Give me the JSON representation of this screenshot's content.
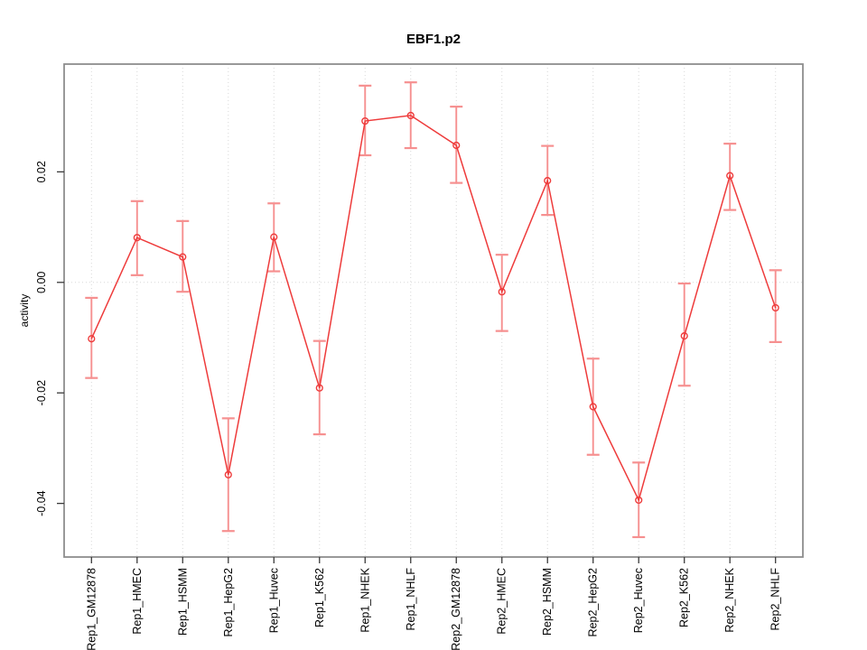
{
  "chart_data": {
    "type": "line",
    "title": "EBF1.p2",
    "xlabel": "",
    "ylabel": "activity",
    "categories": [
      "Rep1_GM12878",
      "Rep1_HMEC",
      "Rep1_HSMM",
      "Rep1_HepG2",
      "Rep1_Huvec",
      "Rep1_K562",
      "Rep1_NHEK",
      "Rep1_NHLF",
      "Rep2_GM12878",
      "Rep2_HMEC",
      "Rep2_HSMM",
      "Rep2_HepG2",
      "Rep2_Huvec",
      "Rep2_K562",
      "Rep2_NHEK",
      "Rep2_NHLF"
    ],
    "series": [
      {
        "name": "EBF1.p2 activity",
        "values": [
          -0.0102,
          0.0081,
          0.0046,
          -0.0348,
          0.0082,
          -0.0191,
          0.0292,
          0.0302,
          0.0248,
          -0.0017,
          0.0184,
          -0.0225,
          -0.0394,
          -0.0097,
          0.0193,
          -0.0046
        ],
        "err_low": [
          -0.0173,
          0.0013,
          -0.0017,
          -0.045,
          0.002,
          -0.0275,
          0.023,
          0.0243,
          0.018,
          -0.0088,
          0.0122,
          -0.0312,
          -0.0461,
          -0.0187,
          0.0131,
          -0.0108
        ],
        "err_high": [
          -0.0028,
          0.0147,
          0.0111,
          -0.0246,
          0.0143,
          -0.0106,
          0.0356,
          0.0362,
          0.0318,
          0.005,
          0.0247,
          -0.0138,
          -0.0326,
          -0.0002,
          0.0251,
          0.0022
        ]
      }
    ],
    "ylim": [
      -0.0497,
      0.0395
    ],
    "xlim": [
      0.4,
      16.6
    ],
    "yticks": [
      {
        "value": -0.04,
        "label": "-0.04"
      },
      {
        "value": -0.02,
        "label": "-0.02"
      },
      {
        "value": 0.0,
        "label": "0.00"
      },
      {
        "value": 0.02,
        "label": "0.02"
      }
    ],
    "grid": {
      "vertical_per_category": true,
      "horizontal_at_zero": true,
      "style": "dotted"
    },
    "legend": "none",
    "marker": "open-circle",
    "error_bars": true
  },
  "colors": {
    "line": "#ee3b3b",
    "marker": "#ee3b3b",
    "error_bar": "#f69090",
    "grid": "#d8d8d8",
    "box_border": "#8e8e8e",
    "tick": "#3a3a3a",
    "text": "#000000",
    "background": "#ffffff"
  }
}
